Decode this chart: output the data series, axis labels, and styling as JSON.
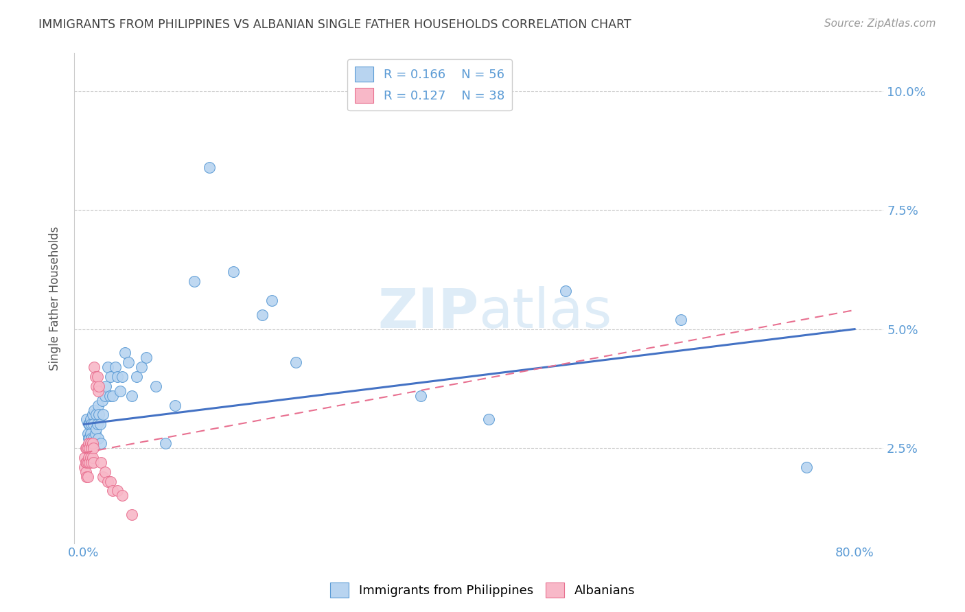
{
  "title": "IMMIGRANTS FROM PHILIPPINES VS ALBANIAN SINGLE FATHER HOUSEHOLDS CORRELATION CHART",
  "source": "Source: ZipAtlas.com",
  "ylabel": "Single Father Households",
  "xlabel_ticks": [
    "0.0%",
    "80.0%"
  ],
  "xlabel_vals": [
    0.0,
    0.8
  ],
  "ylabel_ticks_right": [
    "2.5%",
    "5.0%",
    "7.5%",
    "10.0%"
  ],
  "ylabel_vals_right": [
    0.025,
    0.05,
    0.075,
    0.1
  ],
  "xlim": [
    -0.01,
    0.83
  ],
  "ylim": [
    0.005,
    0.108
  ],
  "watermark_text": "ZIPatlas",
  "legend_entries": [
    {
      "label": "Immigrants from Philippines",
      "R": "0.166",
      "N": "56",
      "face_color": "#b8d4f0",
      "edge_color": "#5b9bd5"
    },
    {
      "label": "Albanians",
      "R": "0.127",
      "N": "38",
      "face_color": "#f8b8c8",
      "edge_color": "#e87090"
    }
  ],
  "philippines_x": [
    0.003,
    0.004,
    0.005,
    0.005,
    0.006,
    0.006,
    0.007,
    0.007,
    0.008,
    0.008,
    0.009,
    0.009,
    0.01,
    0.01,
    0.011,
    0.012,
    0.013,
    0.013,
    0.014,
    0.015,
    0.015,
    0.016,
    0.017,
    0.018,
    0.019,
    0.02,
    0.022,
    0.023,
    0.025,
    0.027,
    0.028,
    0.03,
    0.033,
    0.035,
    0.038,
    0.04,
    0.043,
    0.046,
    0.05,
    0.055,
    0.06,
    0.065,
    0.075,
    0.085,
    0.095,
    0.115,
    0.13,
    0.155,
    0.185,
    0.195,
    0.22,
    0.35,
    0.42,
    0.5,
    0.62,
    0.75
  ],
  "philippines_y": [
    0.031,
    0.028,
    0.03,
    0.027,
    0.03,
    0.027,
    0.031,
    0.028,
    0.03,
    0.027,
    0.032,
    0.026,
    0.03,
    0.027,
    0.033,
    0.028,
    0.032,
    0.029,
    0.03,
    0.034,
    0.027,
    0.032,
    0.03,
    0.026,
    0.035,
    0.032,
    0.036,
    0.038,
    0.042,
    0.036,
    0.04,
    0.036,
    0.042,
    0.04,
    0.037,
    0.04,
    0.045,
    0.043,
    0.036,
    0.04,
    0.042,
    0.044,
    0.038,
    0.026,
    0.034,
    0.06,
    0.084,
    0.062,
    0.053,
    0.056,
    0.043,
    0.036,
    0.031,
    0.058,
    0.052,
    0.021
  ],
  "albanian_x": [
    0.001,
    0.001,
    0.002,
    0.002,
    0.002,
    0.003,
    0.003,
    0.003,
    0.004,
    0.004,
    0.004,
    0.005,
    0.005,
    0.006,
    0.006,
    0.007,
    0.007,
    0.008,
    0.008,
    0.009,
    0.009,
    0.01,
    0.01,
    0.011,
    0.012,
    0.013,
    0.014,
    0.015,
    0.016,
    0.018,
    0.02,
    0.022,
    0.025,
    0.028,
    0.03,
    0.035,
    0.04,
    0.05
  ],
  "albanian_y": [
    0.023,
    0.021,
    0.025,
    0.022,
    0.02,
    0.025,
    0.022,
    0.019,
    0.025,
    0.022,
    0.019,
    0.026,
    0.023,
    0.025,
    0.022,
    0.026,
    0.023,
    0.025,
    0.022,
    0.026,
    0.023,
    0.025,
    0.022,
    0.042,
    0.04,
    0.038,
    0.04,
    0.037,
    0.038,
    0.022,
    0.019,
    0.02,
    0.018,
    0.018,
    0.016,
    0.016,
    0.015,
    0.011
  ],
  "blue_line_x": [
    0.0,
    0.8
  ],
  "blue_line_y": [
    0.03,
    0.05
  ],
  "pink_line_x": [
    0.0,
    0.8
  ],
  "pink_line_y": [
    0.024,
    0.054
  ],
  "blue_line_color": "#4472c4",
  "pink_line_color": "#e87090",
  "scatter_blue_face": "#b8d4f0",
  "scatter_blue_edge": "#5b9bd5",
  "scatter_pink_face": "#f8b8c8",
  "scatter_pink_edge": "#e87090",
  "background": "#ffffff",
  "grid_color": "#cccccc",
  "title_color": "#404040",
  "tick_color": "#5b9bd5",
  "ylabel_color": "#555555",
  "watermark_color": "#d0e4f4",
  "watermark_alpha": 0.7
}
